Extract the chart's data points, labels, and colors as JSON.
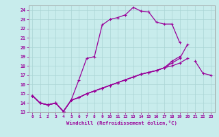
{
  "xlabel": "Windchill (Refroidissement éolien,°C)",
  "xlim": [
    -0.5,
    23.5
  ],
  "ylim": [
    13,
    24.5
  ],
  "xticks": [
    0,
    1,
    2,
    3,
    4,
    5,
    6,
    7,
    8,
    9,
    10,
    11,
    12,
    13,
    14,
    15,
    16,
    17,
    18,
    19,
    20,
    21,
    22,
    23
  ],
  "yticks": [
    13,
    14,
    15,
    16,
    17,
    18,
    19,
    20,
    21,
    22,
    23,
    24
  ],
  "background_color": "#c8ecec",
  "line_color": "#990099",
  "grid_color": "#aad4d4",
  "line1_y": [
    14.8,
    14.0,
    13.8,
    14.0,
    13.1,
    14.3,
    16.5,
    18.8,
    19.0,
    22.4,
    23.0,
    23.2,
    23.5,
    24.3,
    23.9,
    23.8,
    22.7,
    22.5,
    22.5,
    20.5,
    null,
    null,
    null,
    null
  ],
  "line2_y": [
    14.8,
    14.0,
    13.8,
    14.0,
    13.1,
    14.3,
    14.6,
    15.0,
    15.3,
    15.6,
    15.9,
    16.2,
    16.5,
    16.8,
    17.1,
    17.3,
    17.5,
    17.8,
    18.0,
    18.3,
    18.8,
    null,
    null,
    null
  ],
  "line3_y": [
    14.8,
    14.0,
    13.8,
    14.0,
    13.1,
    14.3,
    14.6,
    15.0,
    15.3,
    15.6,
    15.9,
    16.2,
    16.5,
    16.8,
    17.1,
    17.3,
    17.5,
    17.8,
    18.3,
    18.8,
    20.3,
    null,
    null,
    null
  ],
  "line4_y": [
    14.8,
    14.0,
    13.8,
    14.0,
    13.1,
    14.3,
    14.6,
    15.0,
    15.3,
    15.6,
    15.9,
    16.2,
    16.5,
    16.8,
    17.1,
    17.3,
    17.5,
    17.8,
    18.5,
    19.0,
    null,
    18.5,
    17.2,
    17.0
  ]
}
